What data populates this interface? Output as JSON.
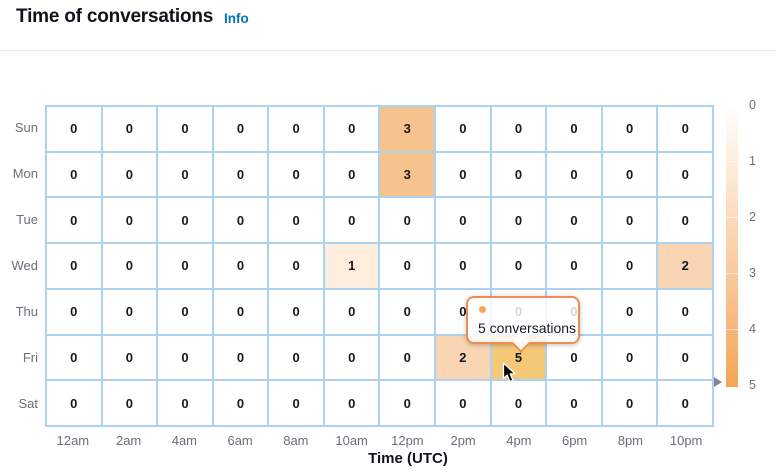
{
  "header": {
    "title": "Time of conversations",
    "info_label": "Info"
  },
  "chart_data": {
    "type": "heatmap",
    "title": "Time of conversations",
    "x_categories": [
      "12am",
      "2am",
      "4am",
      "6am",
      "8am",
      "10am",
      "12pm",
      "2pm",
      "4pm",
      "6pm",
      "8pm",
      "10pm"
    ],
    "y_categories": [
      "Sun",
      "Mon",
      "Tue",
      "Wed",
      "Thu",
      "Fri",
      "Sat"
    ],
    "series_rows": [
      [
        0,
        0,
        0,
        0,
        0,
        0,
        3,
        0,
        0,
        0,
        0,
        0
      ],
      [
        0,
        0,
        0,
        0,
        0,
        0,
        3,
        0,
        0,
        0,
        0,
        0
      ],
      [
        0,
        0,
        0,
        0,
        0,
        0,
        0,
        0,
        0,
        0,
        0,
        0
      ],
      [
        0,
        0,
        0,
        0,
        0,
        1,
        0,
        0,
        0,
        0,
        0,
        2
      ],
      [
        0,
        0,
        0,
        0,
        0,
        0,
        0,
        0,
        0,
        0,
        0,
        0
      ],
      [
        0,
        0,
        0,
        0,
        0,
        0,
        0,
        2,
        5,
        0,
        0,
        0
      ],
      [
        0,
        0,
        0,
        0,
        0,
        0,
        0,
        0,
        0,
        0,
        0,
        0
      ]
    ],
    "xlabel": "Time (UTC)",
    "legend": {
      "position": "right",
      "min": 0,
      "max": 5,
      "ticks": [
        "0",
        "1",
        "2",
        "3",
        "4",
        "5"
      ],
      "marker_at_value": 5,
      "scale_low_color": "#ffffff",
      "scale_high_color": "#f4a558"
    },
    "hovered_cell": {
      "day": "Fri",
      "time": "4pm",
      "value": 5
    },
    "value_colors": {
      "0": "#ffffff",
      "1": "#fdeedd",
      "2": "#f9d5b3",
      "3": "#f6c28e",
      "5": "#f5c878"
    },
    "grid_line_color": "#abd2f0"
  },
  "tooltip": {
    "text": "5 conversations",
    "dot_color": "#f5a45c",
    "border_color": "#ef8c51"
  }
}
